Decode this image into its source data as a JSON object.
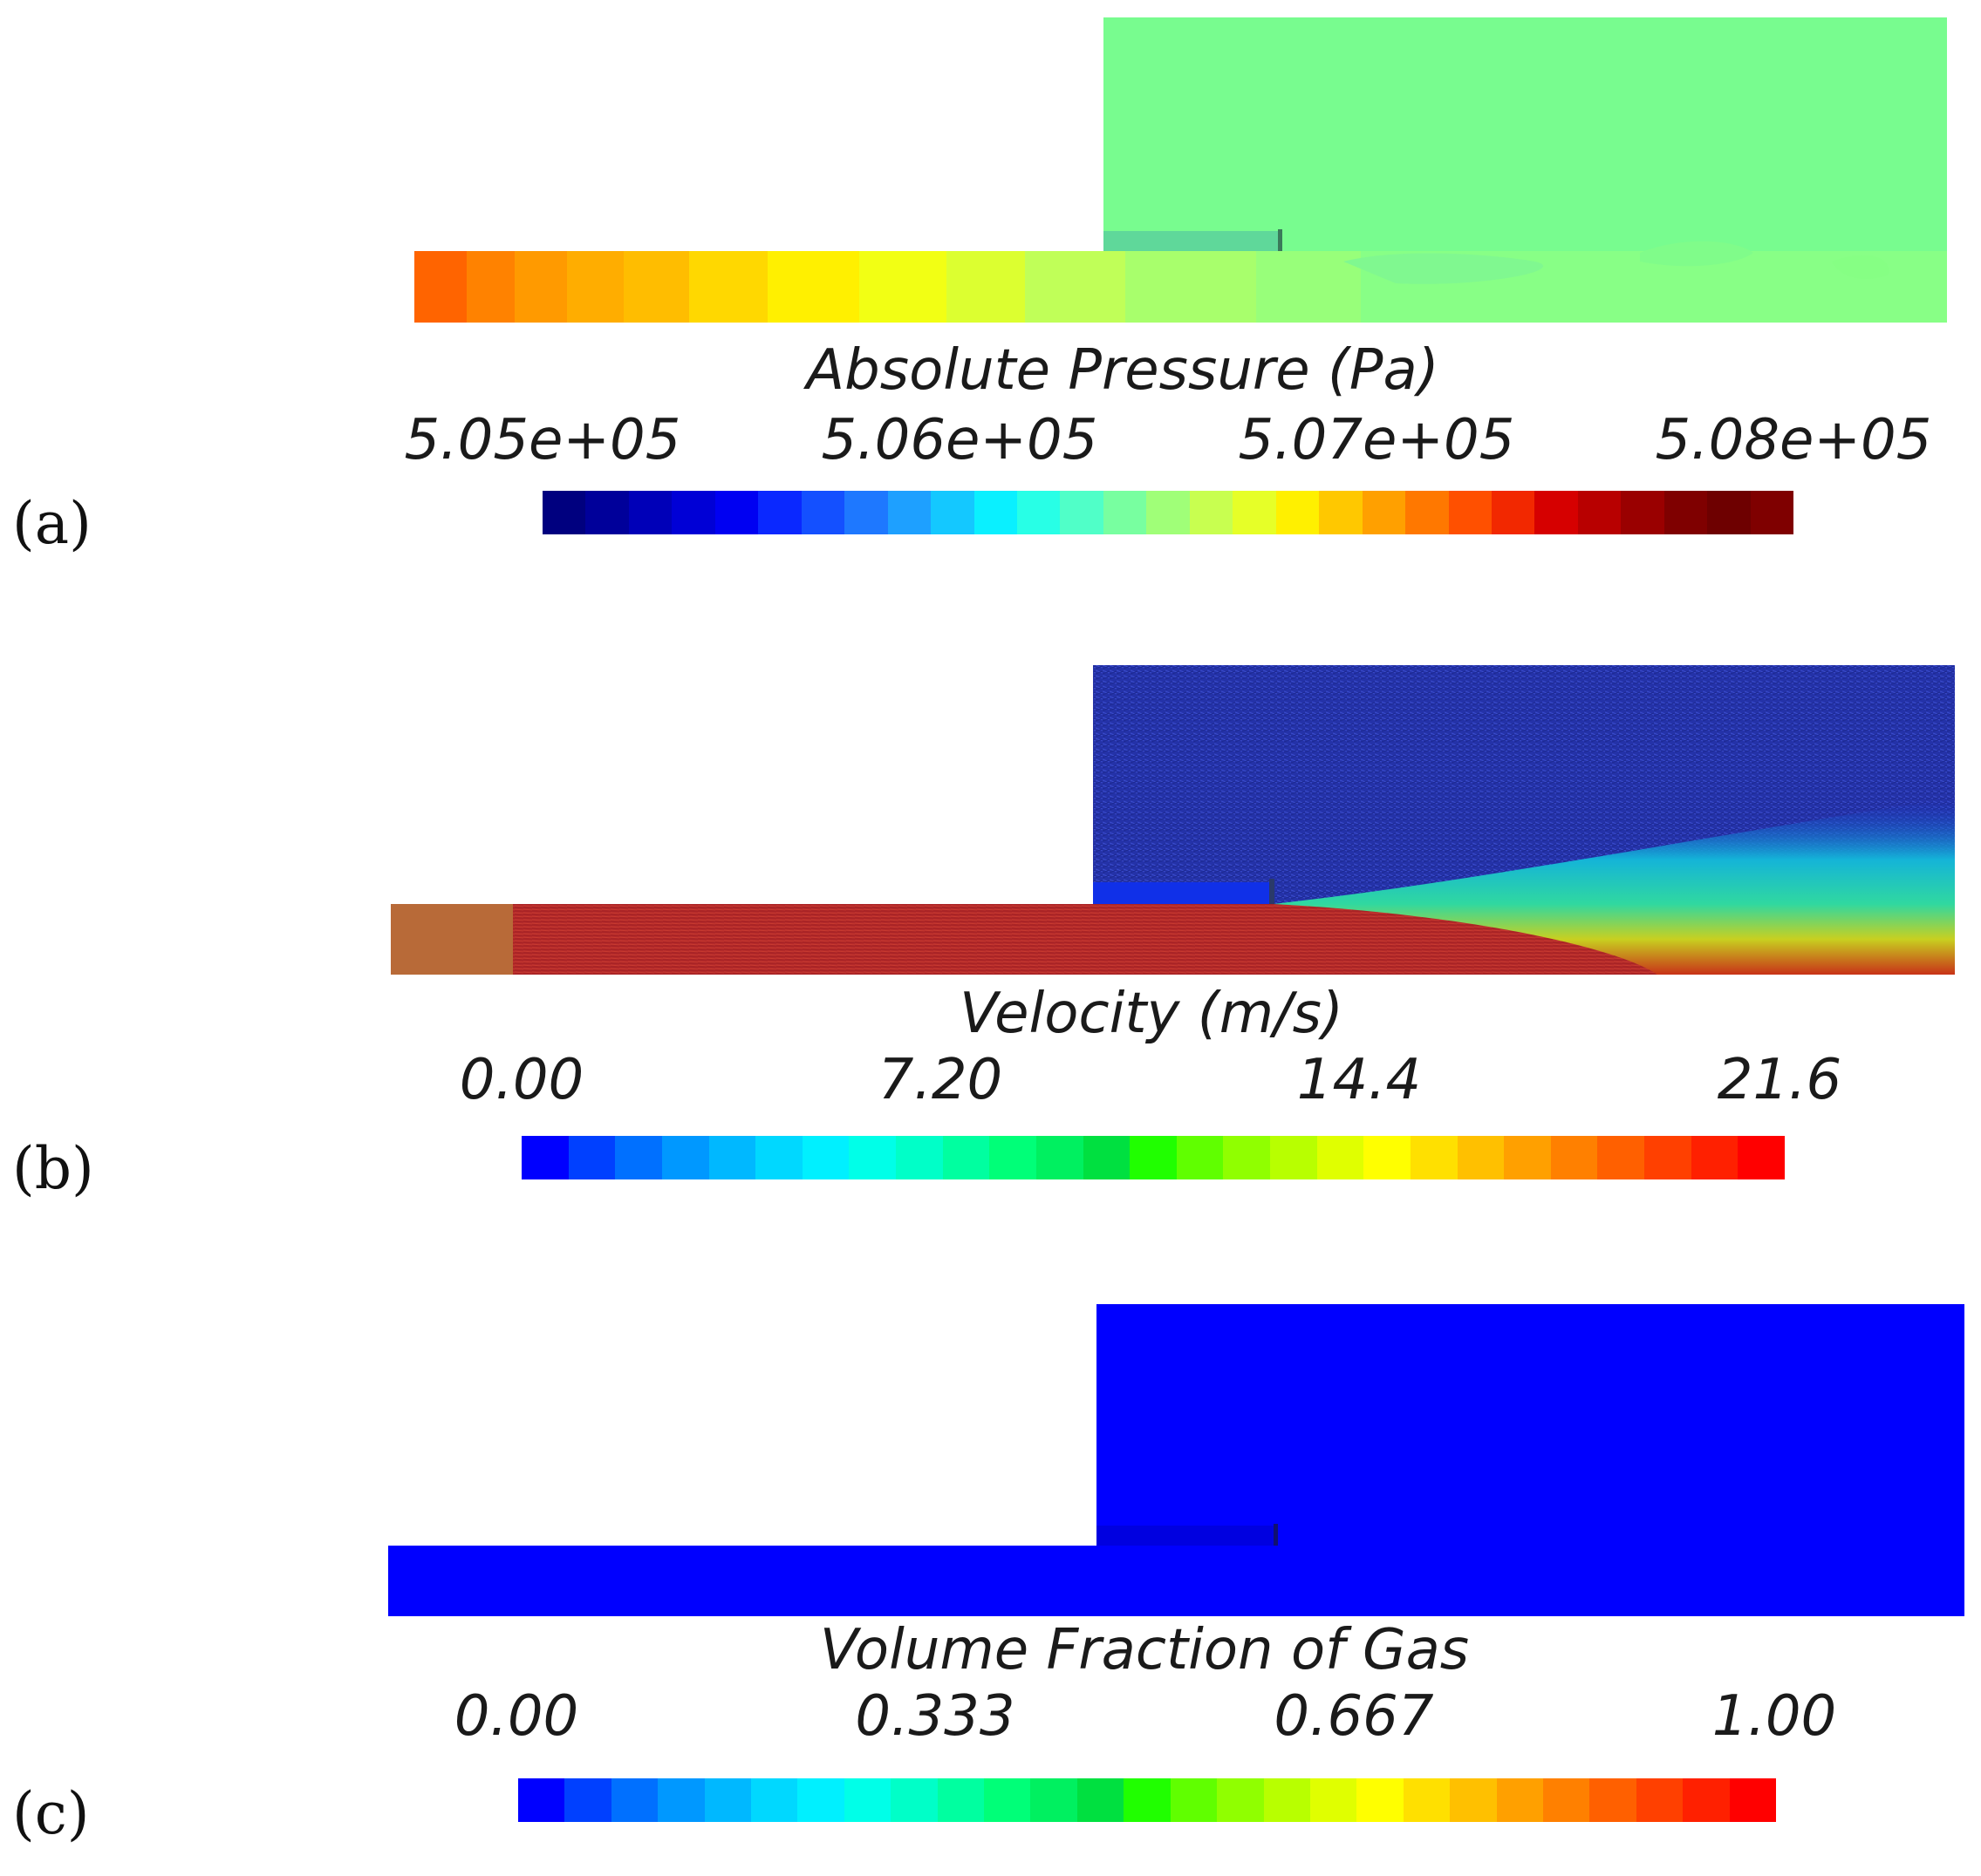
{
  "panels": [
    {
      "label": "(a)",
      "title": "Absolute Pressure (Pa)",
      "ticks": [
        "5.05e+05",
        "5.06e+05",
        "5.07e+05",
        "5.08e+05"
      ],
      "colormap": [
        "#00007f",
        "#00009a",
        "#0000b8",
        "#0000d6",
        "#0000f2",
        "#0a28ff",
        "#1450ff",
        "#1e78ff",
        "#1ea0ff",
        "#14c8ff",
        "#0af0ff",
        "#28ffe6",
        "#50ffc8",
        "#78ffa0",
        "#a0ff78",
        "#c8ff50",
        "#e6ff28",
        "#fff000",
        "#ffc800",
        "#ffa000",
        "#ff7800",
        "#ff5000",
        "#f22800",
        "#d60000",
        "#b80000",
        "#9a0000",
        "#7f0000",
        "#6e0000",
        "#7f0000"
      ]
    },
    {
      "label": "(b)",
      "title": "Velocity (m/s)",
      "ticks": [
        "0.00",
        "7.20",
        "14.4",
        "21.6"
      ],
      "colormap": [
        "#0000ff",
        "#0040ff",
        "#0070ff",
        "#0098ff",
        "#00b8ff",
        "#00d8ff",
        "#00f0ff",
        "#00ffe8",
        "#00ffc8",
        "#00ffa0",
        "#00ff78",
        "#00f060",
        "#00e040",
        "#20ff00",
        "#60ff00",
        "#90ff00",
        "#b8ff00",
        "#e0ff00",
        "#ffff00",
        "#ffe000",
        "#ffc000",
        "#ffa000",
        "#ff8000",
        "#ff6000",
        "#ff4000",
        "#ff2000",
        "#ff0000"
      ]
    },
    {
      "label": "(c)",
      "title": "Volume Fraction of Gas",
      "ticks": [
        "0.00",
        "0.333",
        "0.667",
        "1.00"
      ],
      "colormap": [
        "#0000ff",
        "#0040ff",
        "#0070ff",
        "#0098ff",
        "#00b8ff",
        "#00d8ff",
        "#00f0ff",
        "#00ffe8",
        "#00ffc8",
        "#00ffa0",
        "#00ff78",
        "#00f060",
        "#00e040",
        "#20ff00",
        "#60ff00",
        "#90ff00",
        "#b8ff00",
        "#e0ff00",
        "#ffff00",
        "#ffe000",
        "#ffc000",
        "#ffa000",
        "#ff8000",
        "#ff6000",
        "#ff4000",
        "#ff2000",
        "#ff0000"
      ]
    }
  ]
}
